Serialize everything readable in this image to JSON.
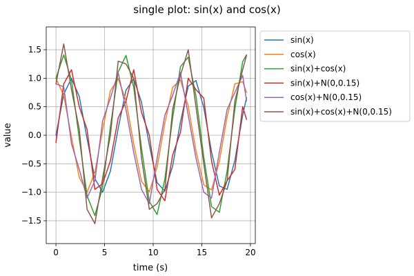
{
  "chart_data": {
    "type": "line",
    "title": "single plot: sin(x) and cos(x)",
    "xlabel": "time (s)",
    "ylabel": "value",
    "xlim": [
      -1,
      20.5
    ],
    "ylim": [
      -1.9,
      1.9
    ],
    "x_ticks": [
      0,
      5,
      10,
      15,
      20
    ],
    "x_tick_labels": [
      "0",
      "5",
      "10",
      "15",
      "20"
    ],
    "y_ticks": [
      -1.5,
      -1.0,
      -0.5,
      0.0,
      0.5,
      1.0,
      1.5
    ],
    "y_tick_labels": [
      "−1.5",
      "−1.0",
      "−0.5",
      "0.0",
      "0.5",
      "1.0",
      "1.5"
    ],
    "grid": true,
    "legend_position": "outside-right-top",
    "x": [
      0.0,
      0.8,
      1.6,
      2.4,
      3.2,
      4.0,
      4.8,
      5.6,
      6.4,
      7.2,
      8.0,
      8.8,
      9.6,
      10.4,
      11.2,
      12.0,
      12.8,
      13.6,
      14.4,
      15.2,
      16.0,
      16.8,
      17.6,
      18.4,
      19.2,
      19.6
    ],
    "series": [
      {
        "name": "sin(x)",
        "color": "#1f77b4",
        "values": [
          0.0,
          0.72,
          1.0,
          0.68,
          -0.06,
          -0.76,
          -1.0,
          -0.63,
          0.12,
          0.79,
          0.99,
          0.58,
          -0.17,
          -0.83,
          -0.98,
          -0.54,
          0.23,
          0.86,
          0.96,
          0.49,
          -0.29,
          -0.89,
          -0.95,
          -0.44,
          0.35,
          0.66
        ]
      },
      {
        "name": "cos(x)",
        "color": "#ff7f0e",
        "values": [
          1.0,
          0.7,
          -0.03,
          -0.74,
          -1.0,
          -0.65,
          0.09,
          0.78,
          0.99,
          0.61,
          -0.15,
          -0.81,
          -0.99,
          -0.56,
          0.21,
          0.84,
          0.97,
          0.51,
          -0.27,
          -0.87,
          -0.96,
          -0.46,
          0.32,
          0.9,
          0.94,
          0.75
        ]
      },
      {
        "name": "sin(x)+cos(x)",
        "color": "#2ca02c",
        "values": [
          1.0,
          1.41,
          0.97,
          -0.06,
          -1.06,
          -1.41,
          -0.91,
          0.15,
          1.11,
          1.4,
          0.84,
          -0.23,
          -1.16,
          -1.39,
          -0.77,
          0.3,
          1.2,
          1.37,
          0.69,
          -0.38,
          -1.25,
          -1.35,
          -0.63,
          0.46,
          1.29,
          1.41
        ]
      },
      {
        "name": "sin(x)+N(0,0.15)",
        "color": "#d62728",
        "values": [
          -0.13,
          0.9,
          1.15,
          0.5,
          0.1,
          -0.95,
          -0.85,
          -0.45,
          0.3,
          0.6,
          1.15,
          0.4,
          0.0,
          -0.95,
          -1.15,
          -0.35,
          0.05,
          1.0,
          0.8,
          0.65,
          -0.45,
          -1.05,
          -0.8,
          -0.6,
          0.5,
          0.28
        ]
      },
      {
        "name": "cos(x)+N(0,0.15)",
        "color": "#9467bd",
        "values": [
          0.9,
          0.85,
          -0.15,
          -0.6,
          -1.1,
          -0.8,
          0.25,
          0.65,
          1.1,
          0.45,
          -0.3,
          -0.95,
          -1.2,
          -0.4,
          0.35,
          0.7,
          1.1,
          0.35,
          -0.4,
          -1.0,
          -1.1,
          -0.3,
          0.45,
          0.75,
          1.05,
          0.6
        ]
      },
      {
        "name": "sin(x)+cos(x)+N(0,0.15)",
        "color": "#8c564b",
        "values": [
          0.9,
          1.6,
          0.8,
          0.1,
          -1.3,
          -1.55,
          -0.75,
          0.0,
          1.3,
          1.25,
          1.0,
          -0.4,
          -1.3,
          -1.2,
          -0.95,
          0.45,
          1.05,
          1.5,
          0.5,
          -0.5,
          -1.45,
          -1.2,
          -0.8,
          0.6,
          1.15,
          1.4
        ]
      }
    ]
  }
}
